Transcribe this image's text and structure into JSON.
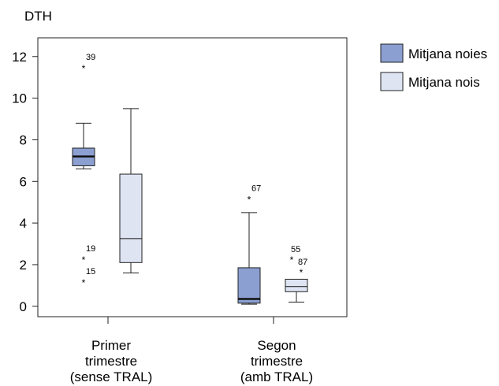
{
  "chart_data": {
    "type": "boxplot",
    "ylabel": "DTH",
    "ylim": [
      -0.5,
      12.9
    ],
    "yticks": [
      0,
      2,
      4,
      6,
      8,
      10,
      12
    ],
    "categories": [
      [
        "Primer",
        "trimestre",
        "(sense TRAL)"
      ],
      [
        "Segon",
        "trimestre",
        "(amb TRAL)"
      ]
    ],
    "legend_position": "top-right",
    "series": [
      {
        "name": "Mitjana noies",
        "color": "#8b9fd1",
        "boxes": [
          {
            "whisker_low": 6.6,
            "q1": 6.75,
            "median": 7.2,
            "q3": 7.6,
            "whisker_high": 8.8,
            "outliers": [
              {
                "label": "39",
                "value": 11.5
              },
              {
                "label": "19",
                "value": 2.3
              },
              {
                "label": "15",
                "value": 1.2
              }
            ]
          },
          {
            "whisker_low": 0.1,
            "q1": 0.15,
            "median": 0.35,
            "q3": 1.85,
            "whisker_high": 4.5,
            "outliers": [
              {
                "label": "67",
                "value": 5.2
              }
            ]
          }
        ]
      },
      {
        "name": "Mitjana nois",
        "color": "#dfe4f3",
        "boxes": [
          {
            "whisker_low": 1.6,
            "q1": 2.1,
            "median": 3.25,
            "q3": 6.35,
            "whisker_high": 9.5,
            "outliers": []
          },
          {
            "whisker_low": 0.2,
            "q1": 0.7,
            "median": 0.95,
            "q3": 1.3,
            "whisker_high": 1.3,
            "outliers": [
              {
                "label": "55",
                "value": 2.3
              },
              {
                "label": "87",
                "value": 1.7
              }
            ]
          }
        ]
      }
    ]
  }
}
